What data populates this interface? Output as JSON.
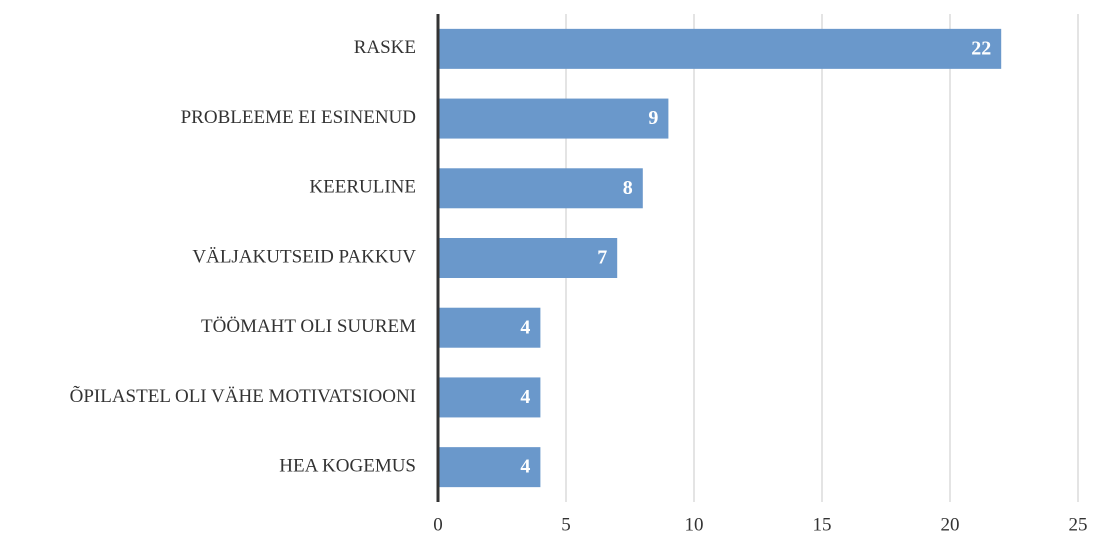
{
  "chart_data": {
    "type": "barh",
    "categories": [
      "RASKE",
      "PROBLEEME EI ESINENUD",
      "KEERULINE",
      "VÄLJAKUTSEID PAKKUV",
      "TÖÖMAHT OLI SUUREM",
      "ÕPILASTEL OLI VÄHE MOTIVATSIOONI",
      "HEA KOGEMUS"
    ],
    "values": [
      22,
      9,
      8,
      7,
      4,
      4,
      4
    ],
    "color": "#6a98cb",
    "xlim": [
      0,
      25
    ],
    "xticks": [
      0,
      5,
      10,
      15,
      20,
      25
    ],
    "grid": true
  }
}
